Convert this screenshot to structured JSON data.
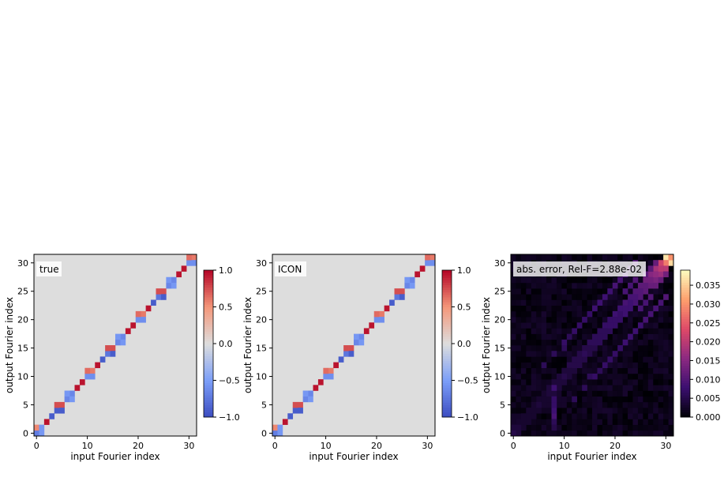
{
  "chart_data": [
    {
      "type": "heatmap",
      "label": "true",
      "xlabel": "input Fourier index",
      "ylabel": "output Fourier index",
      "xlim": [
        0,
        31
      ],
      "ylim": [
        0,
        31
      ],
      "x_ticks": [
        "0",
        "10",
        "20",
        "30"
      ],
      "y_ticks": [
        "0",
        "5",
        "10",
        "15",
        "20",
        "25",
        "30"
      ],
      "colormap": "coolwarm",
      "colorbar_range": [
        -1.0,
        1.0
      ],
      "colorbar_ticks": [
        "−1.0",
        "−0.5",
        "0.0",
        "0.5",
        "1.0"
      ],
      "background_value": 0.0,
      "cells": [
        [
          0,
          0,
          -0.7
        ],
        [
          1,
          0,
          -0.55
        ],
        [
          0,
          1,
          0.55
        ],
        [
          1,
          1,
          -0.55
        ],
        [
          2,
          2,
          0.95
        ],
        [
          3,
          3,
          -0.9
        ],
        [
          4,
          4,
          -0.9
        ],
        [
          5,
          5,
          0.75
        ],
        [
          4,
          5,
          0.75
        ],
        [
          5,
          4,
          -0.9
        ],
        [
          6,
          6,
          -0.65
        ],
        [
          7,
          7,
          -0.65
        ],
        [
          6,
          7,
          -0.55
        ],
        [
          7,
          6,
          -0.55
        ],
        [
          8,
          8,
          0.95
        ],
        [
          9,
          9,
          0.95
        ],
        [
          10,
          10,
          -0.6
        ],
        [
          11,
          11,
          0.6
        ],
        [
          10,
          11,
          0.65
        ],
        [
          11,
          10,
          -0.6
        ],
        [
          12,
          12,
          0.95
        ],
        [
          13,
          13,
          -0.9
        ],
        [
          14,
          14,
          -0.75
        ],
        [
          15,
          15,
          0.75
        ],
        [
          14,
          15,
          0.75
        ],
        [
          15,
          14,
          -0.9
        ],
        [
          16,
          16,
          -0.65
        ],
        [
          17,
          17,
          -0.65
        ],
        [
          16,
          17,
          -0.55
        ],
        [
          17,
          16,
          -0.55
        ],
        [
          18,
          18,
          0.95
        ],
        [
          19,
          19,
          0.95
        ],
        [
          20,
          20,
          -0.6
        ],
        [
          21,
          21,
          0.6
        ],
        [
          20,
          21,
          0.65
        ],
        [
          21,
          20,
          -0.6
        ],
        [
          22,
          22,
          0.95
        ],
        [
          23,
          23,
          -0.9
        ],
        [
          24,
          24,
          -0.75
        ],
        [
          25,
          25,
          0.75
        ],
        [
          24,
          25,
          0.75
        ],
        [
          25,
          24,
          -0.9
        ],
        [
          26,
          26,
          -0.65
        ],
        [
          27,
          27,
          -0.65
        ],
        [
          26,
          27,
          -0.55
        ],
        [
          27,
          26,
          -0.55
        ],
        [
          28,
          28,
          0.95
        ],
        [
          29,
          29,
          0.95
        ],
        [
          30,
          30,
          -0.6
        ],
        [
          31,
          31,
          0.6
        ],
        [
          30,
          31,
          0.65
        ],
        [
          31,
          30,
          -0.6
        ]
      ]
    },
    {
      "type": "heatmap",
      "label": "ICON",
      "xlabel": "input Fourier index",
      "ylabel": "output Fourier index",
      "xlim": [
        0,
        31
      ],
      "ylim": [
        0,
        31
      ],
      "x_ticks": [
        "0",
        "10",
        "20",
        "30"
      ],
      "y_ticks": [
        "0",
        "5",
        "10",
        "15",
        "20",
        "25",
        "30"
      ],
      "colormap": "coolwarm",
      "colorbar_range": [
        -1.0,
        1.0
      ],
      "colorbar_ticks": [
        "−1.0",
        "−0.5",
        "0.0",
        "0.5",
        "1.0"
      ],
      "background_value": 0.0,
      "cells": [
        [
          0,
          0,
          -0.7
        ],
        [
          1,
          0,
          -0.55
        ],
        [
          0,
          1,
          0.55
        ],
        [
          1,
          1,
          -0.55
        ],
        [
          2,
          2,
          0.95
        ],
        [
          3,
          3,
          -0.9
        ],
        [
          4,
          4,
          -0.9
        ],
        [
          5,
          5,
          0.75
        ],
        [
          4,
          5,
          0.75
        ],
        [
          5,
          4,
          -0.9
        ],
        [
          6,
          6,
          -0.65
        ],
        [
          7,
          7,
          -0.65
        ],
        [
          6,
          7,
          -0.55
        ],
        [
          7,
          6,
          -0.55
        ],
        [
          8,
          8,
          0.95
        ],
        [
          9,
          9,
          0.95
        ],
        [
          10,
          10,
          -0.6
        ],
        [
          11,
          11,
          0.6
        ],
        [
          10,
          11,
          0.65
        ],
        [
          11,
          10,
          -0.6
        ],
        [
          12,
          12,
          0.95
        ],
        [
          13,
          13,
          -0.9
        ],
        [
          14,
          14,
          -0.75
        ],
        [
          15,
          15,
          0.75
        ],
        [
          14,
          15,
          0.75
        ],
        [
          15,
          14,
          -0.9
        ],
        [
          16,
          16,
          -0.65
        ],
        [
          17,
          17,
          -0.65
        ],
        [
          16,
          17,
          -0.55
        ],
        [
          17,
          16,
          -0.55
        ],
        [
          18,
          18,
          0.95
        ],
        [
          19,
          19,
          0.95
        ],
        [
          20,
          20,
          -0.6
        ],
        [
          21,
          21,
          0.6
        ],
        [
          20,
          21,
          0.65
        ],
        [
          21,
          20,
          -0.6
        ],
        [
          22,
          22,
          0.95
        ],
        [
          23,
          23,
          -0.9
        ],
        [
          24,
          24,
          -0.75
        ],
        [
          25,
          25,
          0.75
        ],
        [
          24,
          25,
          0.75
        ],
        [
          25,
          24,
          -0.9
        ],
        [
          26,
          26,
          -0.65
        ],
        [
          27,
          27,
          -0.65
        ],
        [
          26,
          27,
          -0.55
        ],
        [
          27,
          26,
          -0.55
        ],
        [
          28,
          28,
          0.95
        ],
        [
          29,
          29,
          0.95
        ],
        [
          30,
          30,
          -0.6
        ],
        [
          31,
          31,
          0.6
        ],
        [
          30,
          31,
          0.65
        ],
        [
          31,
          30,
          -0.6
        ]
      ]
    },
    {
      "type": "heatmap",
      "label": "abs. error, Rel-F=2.88e-02",
      "xlabel": "input Fourier index",
      "ylabel": "output Fourier index",
      "xlim": [
        0,
        31
      ],
      "ylim": [
        0,
        31
      ],
      "x_ticks": [
        "0",
        "10",
        "20",
        "30"
      ],
      "y_ticks": [
        "0",
        "5",
        "10",
        "15",
        "20",
        "25",
        "30"
      ],
      "colormap": "magma",
      "colorbar_range": [
        0.0,
        0.039
      ],
      "colorbar_ticks": [
        "0.000",
        "0.005",
        "0.010",
        "0.015",
        "0.020",
        "0.025",
        "0.030",
        "0.035"
      ],
      "background_value": 0.001,
      "cells": [
        [
          30,
          31,
          0.037
        ],
        [
          31,
          30,
          0.036
        ],
        [
          31,
          31,
          0.03
        ],
        [
          30,
          30,
          0.028
        ],
        [
          29,
          30,
          0.022
        ],
        [
          30,
          29,
          0.02
        ],
        [
          28,
          29,
          0.018
        ],
        [
          29,
          28,
          0.017
        ],
        [
          27,
          28,
          0.015
        ],
        [
          28,
          27,
          0.014
        ],
        [
          26,
          27,
          0.013
        ],
        [
          27,
          26,
          0.012
        ],
        [
          25,
          26,
          0.011
        ],
        [
          26,
          25,
          0.011
        ],
        [
          24,
          25,
          0.01
        ],
        [
          25,
          24,
          0.01
        ],
        [
          23,
          24,
          0.009
        ],
        [
          24,
          23,
          0.009
        ],
        [
          22,
          23,
          0.009
        ],
        [
          23,
          22,
          0.008
        ],
        [
          21,
          22,
          0.008
        ],
        [
          22,
          21,
          0.008
        ],
        [
          20,
          21,
          0.008
        ],
        [
          21,
          20,
          0.007
        ],
        [
          19,
          20,
          0.007
        ],
        [
          20,
          19,
          0.007
        ],
        [
          18,
          19,
          0.007
        ],
        [
          19,
          18,
          0.006
        ],
        [
          17,
          18,
          0.006
        ],
        [
          18,
          17,
          0.006
        ],
        [
          16,
          17,
          0.006
        ],
        [
          17,
          16,
          0.006
        ],
        [
          15,
          16,
          0.006
        ],
        [
          16,
          15,
          0.005
        ],
        [
          14,
          15,
          0.005
        ],
        [
          15,
          14,
          0.005
        ],
        [
          13,
          14,
          0.005
        ],
        [
          14,
          13,
          0.005
        ],
        [
          12,
          13,
          0.005
        ],
        [
          13,
          12,
          0.005
        ],
        [
          11,
          12,
          0.005
        ],
        [
          12,
          11,
          0.004
        ],
        [
          10,
          11,
          0.004
        ],
        [
          11,
          10,
          0.004
        ],
        [
          9,
          10,
          0.004
        ],
        [
          10,
          9,
          0.004
        ],
        [
          8,
          9,
          0.004
        ],
        [
          9,
          8,
          0.004
        ],
        [
          7,
          8,
          0.004
        ],
        [
          8,
          7,
          0.004
        ],
        [
          6,
          7,
          0.003
        ],
        [
          7,
          6,
          0.003
        ],
        [
          5,
          6,
          0.003
        ],
        [
          6,
          5,
          0.003
        ],
        [
          4,
          5,
          0.003
        ],
        [
          5,
          4,
          0.003
        ],
        [
          3,
          4,
          0.003
        ],
        [
          4,
          3,
          0.003
        ],
        [
          2,
          3,
          0.003
        ],
        [
          3,
          2,
          0.003
        ],
        [
          1,
          2,
          0.003
        ],
        [
          2,
          1,
          0.003
        ],
        [
          0,
          1,
          0.004
        ],
        [
          1,
          0,
          0.004
        ],
        [
          0,
          0,
          0.005
        ],
        [
          1,
          1,
          0.004
        ],
        [
          2,
          2,
          0.003
        ],
        [
          3,
          3,
          0.003
        ],
        [
          4,
          4,
          0.003
        ],
        [
          5,
          5,
          0.004
        ],
        [
          6,
          6,
          0.003
        ],
        [
          7,
          7,
          0.004
        ],
        [
          8,
          8,
          0.008
        ],
        [
          9,
          9,
          0.004
        ],
        [
          10,
          10,
          0.005
        ],
        [
          11,
          11,
          0.004
        ],
        [
          12,
          12,
          0.005
        ],
        [
          13,
          13,
          0.005
        ],
        [
          14,
          14,
          0.006
        ],
        [
          15,
          15,
          0.005
        ],
        [
          16,
          16,
          0.006
        ],
        [
          17,
          17,
          0.006
        ],
        [
          18,
          18,
          0.006
        ],
        [
          19,
          19,
          0.007
        ],
        [
          20,
          20,
          0.007
        ],
        [
          21,
          21,
          0.007
        ],
        [
          22,
          22,
          0.008
        ],
        [
          23,
          23,
          0.008
        ],
        [
          24,
          24,
          0.009
        ],
        [
          25,
          25,
          0.01
        ],
        [
          26,
          26,
          0.011
        ],
        [
          27,
          27,
          0.013
        ],
        [
          28,
          28,
          0.016
        ],
        [
          29,
          29,
          0.02
        ],
        [
          8,
          3,
          0.009
        ],
        [
          8,
          4,
          0.008
        ],
        [
          8,
          5,
          0.007
        ],
        [
          8,
          2,
          0.006
        ],
        [
          8,
          6,
          0.007
        ],
        [
          8,
          1,
          0.005
        ],
        [
          12,
          6,
          0.006
        ],
        [
          14,
          8,
          0.006
        ],
        [
          16,
          10,
          0.007
        ],
        [
          18,
          12,
          0.007
        ],
        [
          20,
          14,
          0.007
        ],
        [
          22,
          16,
          0.008
        ],
        [
          24,
          18,
          0.008
        ],
        [
          26,
          20,
          0.009
        ],
        [
          28,
          22,
          0.009
        ],
        [
          30,
          24,
          0.01
        ],
        [
          6,
          12,
          0.006
        ],
        [
          8,
          14,
          0.006
        ],
        [
          10,
          16,
          0.007
        ],
        [
          12,
          18,
          0.007
        ],
        [
          14,
          20,
          0.007
        ],
        [
          16,
          22,
          0.008
        ],
        [
          18,
          24,
          0.008
        ],
        [
          20,
          26,
          0.009
        ],
        [
          22,
          28,
          0.009
        ],
        [
          24,
          30,
          0.01
        ],
        [
          15,
          10,
          0.006
        ],
        [
          17,
          11,
          0.006
        ],
        [
          19,
          13,
          0.007
        ],
        [
          21,
          15,
          0.007
        ],
        [
          23,
          17,
          0.008
        ],
        [
          25,
          19,
          0.008
        ],
        [
          27,
          21,
          0.009
        ],
        [
          29,
          23,
          0.009
        ],
        [
          10,
          15,
          0.006
        ],
        [
          11,
          17,
          0.006
        ],
        [
          13,
          19,
          0.007
        ],
        [
          15,
          21,
          0.007
        ],
        [
          17,
          23,
          0.008
        ],
        [
          19,
          25,
          0.008
        ],
        [
          21,
          27,
          0.009
        ],
        [
          23,
          29,
          0.009
        ],
        [
          28,
          26,
          0.012
        ],
        [
          26,
          28,
          0.011
        ],
        [
          29,
          27,
          0.012
        ],
        [
          27,
          29,
          0.011
        ],
        [
          30,
          28,
          0.013
        ],
        [
          28,
          30,
          0.012
        ],
        [
          25,
          22,
          0.009
        ],
        [
          22,
          25,
          0.009
        ],
        [
          26,
          23,
          0.009
        ],
        [
          23,
          26,
          0.009
        ],
        [
          27,
          24,
          0.01
        ],
        [
          24,
          27,
          0.01
        ]
      ]
    }
  ]
}
